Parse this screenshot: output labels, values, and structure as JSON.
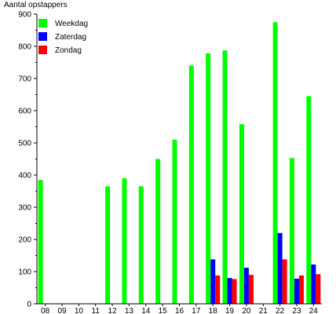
{
  "chart_data": {
    "type": "bar",
    "ylabel": "Aantal opstappers",
    "ylim": [
      0,
      900
    ],
    "yticks": [
      0,
      100,
      200,
      300,
      400,
      500,
      600,
      700,
      800,
      900
    ],
    "grid": false,
    "legend_position": "top-left",
    "categories": [
      "08",
      "09",
      "10",
      "11",
      "12",
      "13",
      "14",
      "15",
      "16",
      "17",
      "18",
      "19",
      "20",
      "21",
      "22",
      "23",
      "24"
    ],
    "series": [
      {
        "name": "Weekdag",
        "color": "#00ff00",
        "values": [
          385,
          0,
          0,
          0,
          365,
          390,
          365,
          450,
          510,
          740,
          778,
          787,
          558,
          0,
          875,
          453,
          645
        ]
      },
      {
        "name": "Zaterdag",
        "color": "#0000ff",
        "values": [
          0,
          0,
          0,
          0,
          0,
          0,
          0,
          0,
          0,
          0,
          138,
          80,
          112,
          0,
          220,
          78,
          122
        ]
      },
      {
        "name": "Zondag",
        "color": "#ff0000",
        "values": [
          0,
          0,
          0,
          0,
          0,
          0,
          0,
          0,
          0,
          0,
          88,
          77,
          90,
          0,
          138,
          88,
          92
        ]
      }
    ]
  }
}
